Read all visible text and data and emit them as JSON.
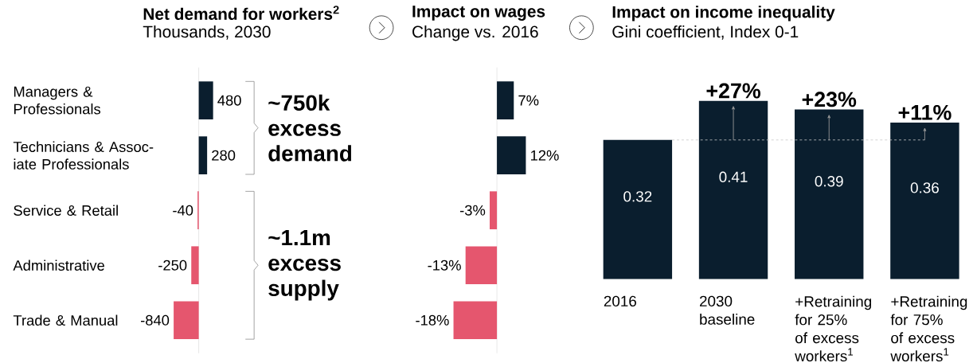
{
  "chart_data": [
    {
      "type": "bar",
      "orientation": "horizontal",
      "title": "Net demand for workers$^{2}$",
      "subtitle": "Thousands, 2030",
      "categories": [
        "Managers & Professionals",
        "Technicians & Assoc-iate Professionals",
        "Service & Retail",
        "Administrative",
        "Trade & Manual"
      ],
      "values": [
        480,
        280,
        -40,
        -250,
        -840
      ],
      "colors": [
        "#0a1e2e",
        "#0a1e2e",
        "#e5566e",
        "#e5566e",
        "#e5566e"
      ],
      "data_labels": true,
      "annotations": [
        "~750k excess demand",
        "~1.1m excess supply"
      ]
    },
    {
      "type": "bar",
      "orientation": "horizontal",
      "title": "Impact on wages",
      "subtitle": "Change vs. 2016",
      "categories": [
        null,
        null,
        null,
        null,
        null
      ],
      "values": [
        7,
        12,
        -3,
        -13,
        -18
      ],
      "colors": [
        "#0a1e2e",
        "#0a1e2e",
        "#e5566e",
        "#e5566e",
        "#e5566e"
      ],
      "value_labels": [
        "7%",
        "12%",
        "-3%",
        "-13%",
        "-18%"
      ]
    },
    {
      "type": "bar",
      "title": "Impact on income inequality",
      "subtitle": "Gini coefficient, Index 0-1",
      "categories": [
        "2016",
        "2030 baseline",
        "+Retraining for 25% of excess workers$^{1}$",
        "+Retraining for 75% of excess workers$^{1}$"
      ],
      "values": [
        0.32,
        0.41,
        0.39,
        0.36
      ],
      "color": "#0a1e2e",
      "data_labels": true,
      "ref_lines": [
        {
          "axis": "y",
          "value": 0.32,
          "color": "#c8c8c8",
          "line_style": "dashed"
        }
      ],
      "annotations": [
        {
          "text": "+27%",
          "x": "2030 baseline",
          "y": 0.41
        },
        {
          "text": "+23%",
          "x": "+Retraining for 25% of excess workers$^{1}$",
          "y": 0.39
        },
        {
          "text": "+11%",
          "x": "+Retraining for 75% of excess workers$^{1}$",
          "y": 0.36
        }
      ]
    }
  ]
}
